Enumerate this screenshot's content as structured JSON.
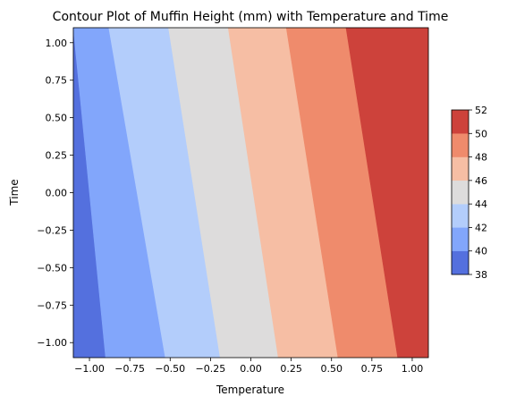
{
  "chart_data": {
    "type": "contour",
    "title": "Contour Plot of Muffin Height (mm) with Temperature and Time",
    "xlabel": "Temperature",
    "ylabel": "Time",
    "xlim": [
      -1.1,
      1.1
    ],
    "ylim": [
      -1.1,
      1.1
    ],
    "xticks": [
      -1.0,
      -0.75,
      -0.5,
      -0.25,
      0.0,
      0.25,
      0.5,
      0.75,
      1.0
    ],
    "xtick_labels": [
      "−1.00",
      "−0.75",
      "−0.50",
      "−0.25",
      "0.00",
      "0.25",
      "0.50",
      "0.75",
      "1.00"
    ],
    "yticks": [
      -1.0,
      -0.75,
      -0.5,
      -0.25,
      0.0,
      0.25,
      0.5,
      0.75,
      1.0
    ],
    "ytick_labels": [
      "−1.00",
      "−0.75",
      "−0.50",
      "−0.25",
      "0.00",
      "0.25",
      "0.50",
      "0.75",
      "1.00"
    ],
    "levels": [
      38,
      40,
      42,
      44,
      46,
      48,
      50,
      52
    ],
    "level_labels": [
      "38",
      "40",
      "42",
      "44",
      "46",
      "48",
      "50",
      "52"
    ],
    "colors": [
      "#5470de",
      "#82a6fb",
      "#b3cdfb",
      "#dddcdc",
      "#f6bea4",
      "#ef8b6c",
      "#cd423b"
    ],
    "boundaries": [
      {
        "level": 40,
        "at_ymin": -0.9,
        "at_ymax": -1.1
      },
      {
        "level": 42,
        "at_ymin": -0.53,
        "at_ymax": -0.88
      },
      {
        "level": 44,
        "at_ymin": -0.19,
        "at_ymax": -0.51
      },
      {
        "level": 46,
        "at_ymin": 0.17,
        "at_ymax": -0.14
      },
      {
        "level": 48,
        "at_ymin": 0.54,
        "at_ymax": 0.22
      },
      {
        "level": 50,
        "at_ymin": 0.91,
        "at_ymax": 0.59
      }
    ],
    "colorbar": true,
    "colorbar_position": "right",
    "grid": false
  }
}
